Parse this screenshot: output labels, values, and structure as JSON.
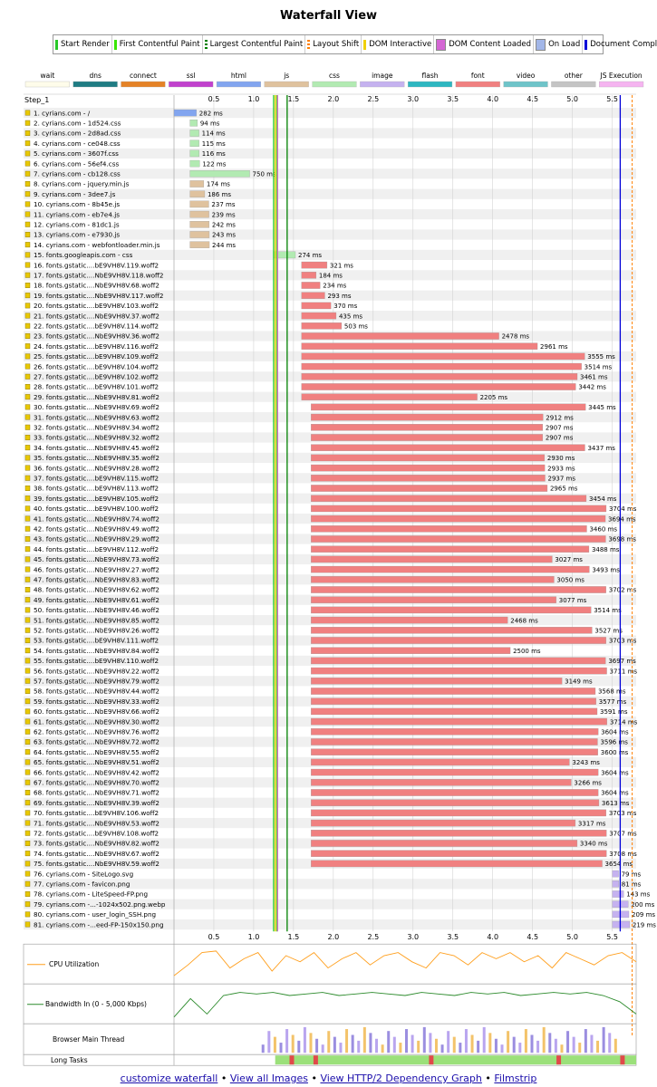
{
  "page_title": "Waterfall View",
  "legend": [
    {
      "label": "Start Render",
      "color": "#28c828",
      "kind": "line"
    },
    {
      "label": "First Contentful Paint",
      "color": "#39e600",
      "kind": "line"
    },
    {
      "label": "Largest Contentful Paint",
      "color": "#008000",
      "kind": "dots"
    },
    {
      "label": "Layout Shift",
      "color": "#ff7f00",
      "kind": "dots"
    },
    {
      "label": "DOM Interactive",
      "color": "#f0d000",
      "kind": "line"
    },
    {
      "label": "DOM Content Loaded",
      "color": "#d466d4",
      "kind": "box"
    },
    {
      "label": "On Load",
      "color": "#a2b6e8",
      "kind": "box"
    },
    {
      "label": "Document Complete",
      "color": "#0000d8",
      "kind": "line"
    }
  ],
  "types": [
    {
      "label": "wait",
      "color": "#fefcea"
    },
    {
      "label": "dns",
      "color": "#1f7c83"
    },
    {
      "label": "connect",
      "color": "#e58226"
    },
    {
      "label": "ssl",
      "color": "#c141cd"
    },
    {
      "label": "html",
      "color": "#82a5ef"
    },
    {
      "label": "js",
      "color": "#dfc29e"
    },
    {
      "label": "css",
      "color": "#b2eab2"
    },
    {
      "label": "image",
      "color": "#c5b2ef"
    },
    {
      "label": "flash",
      "color": "#2db7c1"
    },
    {
      "label": "font",
      "color": "#f08080"
    },
    {
      "label": "video",
      "color": "#6ec4c9"
    },
    {
      "label": "other",
      "color": "#c4c4c4"
    },
    {
      "label": "JS Execution",
      "color": "#f5b4f0"
    }
  ],
  "step_label": "Step_1",
  "footer": {
    "customize": "customize waterfall",
    "images": "View all Images",
    "graph": "View HTTP/2 Dependency Graph",
    "filmstrip": "Filmstrip",
    "sep": "•"
  },
  "chart_data": {
    "type": "waterfall",
    "x_unit": "seconds",
    "x_range": [
      0,
      5.8
    ],
    "x_ticks": [
      0.5,
      1.0,
      1.5,
      2.0,
      2.5,
      3.0,
      3.5,
      4.0,
      4.5,
      5.0,
      5.5
    ],
    "x_tick_labels": [
      "0.5",
      "1.0",
      "1.5",
      "2.0",
      "2.5",
      "3.0",
      "3.5",
      "4.0",
      "4.5",
      "5.0",
      "5.5"
    ],
    "markers": {
      "start_render": 1.25,
      "first_contentful_paint": 1.29,
      "largest_contentful_paint": 1.42,
      "dom_interactive": 1.27,
      "dom_content_loaded": 1.3,
      "on_load": 5.6,
      "document_complete": 5.6,
      "layout_shift": 5.75
    },
    "requests": [
      {
        "label": "1. cyrians.com - /",
        "type": "html",
        "start": 0.0,
        "duration_ms": 282
      },
      {
        "label": "2. cyrians.com - 1d524.css",
        "type": "css",
        "start": 0.2,
        "duration_ms": 94
      },
      {
        "label": "3. cyrians.com - 2d8ad.css",
        "type": "css",
        "start": 0.2,
        "duration_ms": 114
      },
      {
        "label": "4. cyrians.com - ce048.css",
        "type": "css",
        "start": 0.2,
        "duration_ms": 115
      },
      {
        "label": "5. cyrians.com - 3607f.css",
        "type": "css",
        "start": 0.2,
        "duration_ms": 116
      },
      {
        "label": "6. cyrians.com - 56ef4.css",
        "type": "css",
        "start": 0.2,
        "duration_ms": 122
      },
      {
        "label": "7. cyrians.com - cb128.css",
        "type": "css",
        "start": 0.2,
        "duration_ms": 750
      },
      {
        "label": "8. cyrians.com - jquery.min.js",
        "type": "js",
        "start": 0.2,
        "duration_ms": 174
      },
      {
        "label": "9. cyrians.com - 3dee7.js",
        "type": "js",
        "start": 0.2,
        "duration_ms": 186
      },
      {
        "label": "10. cyrians.com - 8b45e.js",
        "type": "js",
        "start": 0.2,
        "duration_ms": 237
      },
      {
        "label": "11. cyrians.com - eb7e4.js",
        "type": "js",
        "start": 0.2,
        "duration_ms": 239
      },
      {
        "label": "12. cyrians.com - 81dc1.js",
        "type": "js",
        "start": 0.2,
        "duration_ms": 242
      },
      {
        "label": "13. cyrians.com - e7930.js",
        "type": "js",
        "start": 0.2,
        "duration_ms": 243
      },
      {
        "label": "14. cyrians.com - webfontloader.min.js",
        "type": "js",
        "start": 0.2,
        "duration_ms": 244
      },
      {
        "label": "15. fonts.googleapis.com - css",
        "type": "css",
        "start": 1.25,
        "duration_ms": 274
      },
      {
        "label": "16. fonts.gstatic....bE9VH8V.119.woff2",
        "type": "font",
        "start": 1.6,
        "duration_ms": 321
      },
      {
        "label": "17. fonts.gstatic....NbE9VH8V.118.woff2",
        "type": "font",
        "start": 1.6,
        "duration_ms": 184
      },
      {
        "label": "18. fonts.gstatic....NbE9VH8V.68.woff2",
        "type": "font",
        "start": 1.6,
        "duration_ms": 234
      },
      {
        "label": "19. fonts.gstatic....NbE9VH8V.117.woff2",
        "type": "font",
        "start": 1.6,
        "duration_ms": 293
      },
      {
        "label": "20. fonts.gstatic....bE9VH8V.103.woff2",
        "type": "font",
        "start": 1.6,
        "duration_ms": 370
      },
      {
        "label": "21. fonts.gstatic....NbE9VH8V.37.woff2",
        "type": "font",
        "start": 1.6,
        "duration_ms": 435
      },
      {
        "label": "22. fonts.gstatic....bE9VH8V.114.woff2",
        "type": "font",
        "start": 1.6,
        "duration_ms": 503
      },
      {
        "label": "23. fonts.gstatic....NbE9VH8V.36.woff2",
        "type": "font",
        "start": 1.6,
        "duration_ms": 2478
      },
      {
        "label": "24. fonts.gstatic....bE9VH8V.116.woff2",
        "type": "font",
        "start": 1.6,
        "duration_ms": 2961
      },
      {
        "label": "25. fonts.gstatic....bE9VH8V.109.woff2",
        "type": "font",
        "start": 1.6,
        "duration_ms": 3555
      },
      {
        "label": "26. fonts.gstatic....bE9VH8V.104.woff2",
        "type": "font",
        "start": 1.6,
        "duration_ms": 3514
      },
      {
        "label": "27. fonts.gstatic....bE9VH8V.102.woff2",
        "type": "font",
        "start": 1.6,
        "duration_ms": 3461
      },
      {
        "label": "28. fonts.gstatic....bE9VH8V.101.woff2",
        "type": "font",
        "start": 1.6,
        "duration_ms": 3442
      },
      {
        "label": "29. fonts.gstatic....NbE9VH8V.81.woff2",
        "type": "font",
        "start": 1.6,
        "duration_ms": 2205
      },
      {
        "label": "30. fonts.gstatic....NbE9VH8V.69.woff2",
        "type": "font",
        "start": 1.72,
        "duration_ms": 3445
      },
      {
        "label": "31. fonts.gstatic....NbE9VH8V.63.woff2",
        "type": "font",
        "start": 1.72,
        "duration_ms": 2912
      },
      {
        "label": "32. fonts.gstatic....NbE9VH8V.34.woff2",
        "type": "font",
        "start": 1.72,
        "duration_ms": 2907
      },
      {
        "label": "33. fonts.gstatic....NbE9VH8V.32.woff2",
        "type": "font",
        "start": 1.72,
        "duration_ms": 2907
      },
      {
        "label": "34. fonts.gstatic....NbE9VH8V.45.woff2",
        "type": "font",
        "start": 1.72,
        "duration_ms": 3437
      },
      {
        "label": "35. fonts.gstatic....NbE9VH8V.35.woff2",
        "type": "font",
        "start": 1.72,
        "duration_ms": 2930
      },
      {
        "label": "36. fonts.gstatic....NbE9VH8V.28.woff2",
        "type": "font",
        "start": 1.72,
        "duration_ms": 2933
      },
      {
        "label": "37. fonts.gstatic....bE9VH8V.115.woff2",
        "type": "font",
        "start": 1.72,
        "duration_ms": 2937
      },
      {
        "label": "38. fonts.gstatic....bE9VH8V.113.woff2",
        "type": "font",
        "start": 1.72,
        "duration_ms": 2965
      },
      {
        "label": "39. fonts.gstatic....bE9VH8V.105.woff2",
        "type": "font",
        "start": 1.72,
        "duration_ms": 3454
      },
      {
        "label": "40. fonts.gstatic....bE9VH8V.100.woff2",
        "type": "font",
        "start": 1.72,
        "duration_ms": 3704
      },
      {
        "label": "41. fonts.gstatic....NbE9VH8V.74.woff2",
        "type": "font",
        "start": 1.72,
        "duration_ms": 3694
      },
      {
        "label": "42. fonts.gstatic....NbE9VH8V.49.woff2",
        "type": "font",
        "start": 1.72,
        "duration_ms": 3460
      },
      {
        "label": "43. fonts.gstatic....NbE9VH8V.29.woff2",
        "type": "font",
        "start": 1.72,
        "duration_ms": 3698
      },
      {
        "label": "44. fonts.gstatic....bE9VH8V.112.woff2",
        "type": "font",
        "start": 1.72,
        "duration_ms": 3488
      },
      {
        "label": "45. fonts.gstatic....NbE9VH8V.73.woff2",
        "type": "font",
        "start": 1.72,
        "duration_ms": 3027
      },
      {
        "label": "46. fonts.gstatic....NbE9VH8V.27.woff2",
        "type": "font",
        "start": 1.72,
        "duration_ms": 3493
      },
      {
        "label": "47. fonts.gstatic....NbE9VH8V.83.woff2",
        "type": "font",
        "start": 1.72,
        "duration_ms": 3050
      },
      {
        "label": "48. fonts.gstatic....NbE9VH8V.62.woff2",
        "type": "font",
        "start": 1.72,
        "duration_ms": 3702
      },
      {
        "label": "49. fonts.gstatic....NbE9VH8V.61.woff2",
        "type": "font",
        "start": 1.72,
        "duration_ms": 3077
      },
      {
        "label": "50. fonts.gstatic....NbE9VH8V.46.woff2",
        "type": "font",
        "start": 1.72,
        "duration_ms": 3514
      },
      {
        "label": "51. fonts.gstatic....NbE9VH8V.85.woff2",
        "type": "font",
        "start": 1.72,
        "duration_ms": 2468
      },
      {
        "label": "52. fonts.gstatic....NbE9VH8V.26.woff2",
        "type": "font",
        "start": 1.72,
        "duration_ms": 3527
      },
      {
        "label": "53. fonts.gstatic....bE9VH8V.111.woff2",
        "type": "font",
        "start": 1.72,
        "duration_ms": 3703
      },
      {
        "label": "54. fonts.gstatic....NbE9VH8V.84.woff2",
        "type": "font",
        "start": 1.72,
        "duration_ms": 2500
      },
      {
        "label": "55. fonts.gstatic....bE9VH8V.110.woff2",
        "type": "font",
        "start": 1.72,
        "duration_ms": 3697
      },
      {
        "label": "56. fonts.gstatic....NbE9VH8V.22.woff2",
        "type": "font",
        "start": 1.72,
        "duration_ms": 3711
      },
      {
        "label": "57. fonts.gstatic....NbE9VH8V.79.woff2",
        "type": "font",
        "start": 1.72,
        "duration_ms": 3149
      },
      {
        "label": "58. fonts.gstatic....NbE9VH8V.44.woff2",
        "type": "font",
        "start": 1.72,
        "duration_ms": 3568
      },
      {
        "label": "59. fonts.gstatic....NbE9VH8V.33.woff2",
        "type": "font",
        "start": 1.72,
        "duration_ms": 3577
      },
      {
        "label": "60. fonts.gstatic....NbE9VH8V.66.woff2",
        "type": "font",
        "start": 1.72,
        "duration_ms": 3591
      },
      {
        "label": "61. fonts.gstatic....NbE9VH8V.30.woff2",
        "type": "font",
        "start": 1.72,
        "duration_ms": 3714
      },
      {
        "label": "62. fonts.gstatic....NbE9VH8V.76.woff2",
        "type": "font",
        "start": 1.72,
        "duration_ms": 3604
      },
      {
        "label": "63. fonts.gstatic....NbE9VH8V.72.woff2",
        "type": "font",
        "start": 1.72,
        "duration_ms": 3596
      },
      {
        "label": "64. fonts.gstatic....NbE9VH8V.55.woff2",
        "type": "font",
        "start": 1.72,
        "duration_ms": 3600
      },
      {
        "label": "65. fonts.gstatic....NbE9VH8V.51.woff2",
        "type": "font",
        "start": 1.72,
        "duration_ms": 3243
      },
      {
        "label": "66. fonts.gstatic....NbE9VH8V.42.woff2",
        "type": "font",
        "start": 1.72,
        "duration_ms": 3604
      },
      {
        "label": "67. fonts.gstatic....NbE9VH8V.70.woff2",
        "type": "font",
        "start": 1.72,
        "duration_ms": 3266
      },
      {
        "label": "68. fonts.gstatic....NbE9VH8V.71.woff2",
        "type": "font",
        "start": 1.72,
        "duration_ms": 3604
      },
      {
        "label": "69. fonts.gstatic....NbE9VH8V.39.woff2",
        "type": "font",
        "start": 1.72,
        "duration_ms": 3613
      },
      {
        "label": "70. fonts.gstatic....bE9VH8V.106.woff2",
        "type": "font",
        "start": 1.72,
        "duration_ms": 3703
      },
      {
        "label": "71. fonts.gstatic....NbE9VH8V.53.woff2",
        "type": "font",
        "start": 1.72,
        "duration_ms": 3317
      },
      {
        "label": "72. fonts.gstatic....bE9VH8V.108.woff2",
        "type": "font",
        "start": 1.72,
        "duration_ms": 3707
      },
      {
        "label": "73. fonts.gstatic....NbE9VH8V.82.woff2",
        "type": "font",
        "start": 1.72,
        "duration_ms": 3340
      },
      {
        "label": "74. fonts.gstatic....NbE9VH8V.67.woff2",
        "type": "font",
        "start": 1.72,
        "duration_ms": 3708
      },
      {
        "label": "75. fonts.gstatic....NbE9VH8V.59.woff2",
        "type": "font",
        "start": 1.72,
        "duration_ms": 3654
      },
      {
        "label": "76. cyrians.com - SiteLogo.svg",
        "type": "image",
        "start": 5.5,
        "duration_ms": 79
      },
      {
        "label": "77. cyrians.com - favicon.png",
        "type": "image",
        "start": 5.5,
        "duration_ms": 81
      },
      {
        "label": "78. cyrians.com - LiteSpeed-FP.png",
        "type": "image",
        "start": 5.5,
        "duration_ms": 143
      },
      {
        "label": "79. cyrians.com -...-1024x502.png.webp",
        "type": "image",
        "start": 5.5,
        "duration_ms": 200
      },
      {
        "label": "80. cyrians.com - user_login_SSH.png",
        "type": "image",
        "start": 5.5,
        "duration_ms": 209
      },
      {
        "label": "81. cyrians.com -...eed-FP-150x150.png",
        "type": "image",
        "start": 5.5,
        "duration_ms": 219
      }
    ],
    "cpu_label": "CPU Utilization",
    "bandwidth_label": "Bandwidth In (0 - 5,000 Kbps)",
    "main_thread_label": "Browser Main Thread",
    "long_tasks_label": "Long Tasks",
    "ms_suffix": " ms"
  }
}
